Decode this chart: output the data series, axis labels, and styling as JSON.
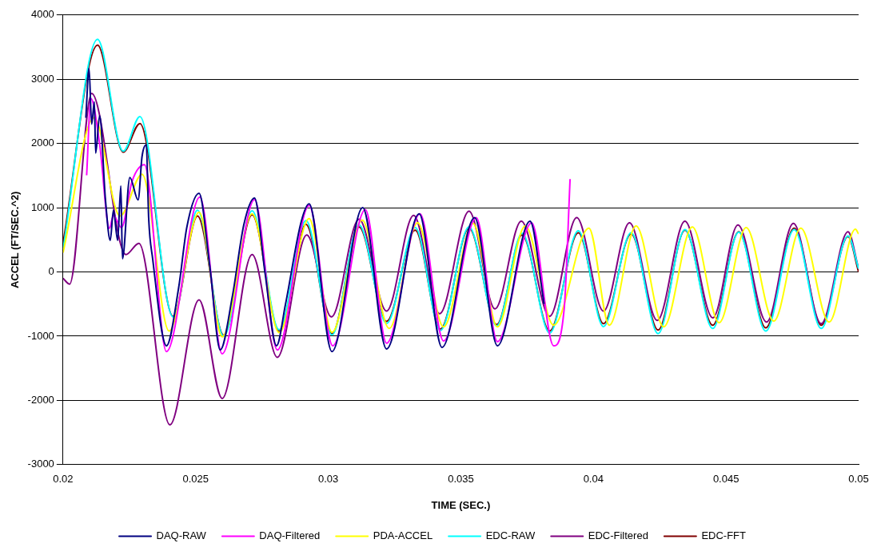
{
  "chart_data": {
    "type": "line",
    "xlabel": "TIME (SEC.)",
    "ylabel": "ACCEL (FT/SEC.^2)",
    "xlim": [
      0.02,
      0.05
    ],
    "xticks": [
      0.02,
      0.025,
      0.03,
      0.035,
      0.04,
      0.045,
      0.05
    ],
    "ylim": [
      -3000,
      4000
    ],
    "yticks": [
      -3000,
      -2000,
      -1000,
      0,
      1000,
      2000,
      3000,
      4000
    ],
    "grid": "y",
    "legend": "bottom",
    "marker": "none",
    "line_style": "solid",
    "series": [
      {
        "name": "DAQ-RAW",
        "color": "#000080",
        "x": [
          0.02086,
          0.02098,
          0.02108,
          0.02118,
          0.02123,
          0.02138,
          0.0216,
          0.02178,
          0.0219,
          0.02206,
          0.02218,
          0.02224,
          0.02252,
          0.02283,
          0.02298,
          0.02314,
          0.02323,
          0.02338,
          0.0239,
          0.02436,
          0.02467,
          0.02513,
          0.02553,
          0.02593,
          0.02639,
          0.02682,
          0.02722,
          0.02762,
          0.02805,
          0.02839,
          0.02898,
          0.02928,
          0.03014,
          0.0313,
          0.0322,
          0.03343,
          0.03429,
          0.03552,
          0.03638,
          0.03761,
          0.03814
        ],
        "values": [
          2400,
          3170,
          2300,
          2650,
          1850,
          2430,
          1120,
          490,
          960,
          490,
          1340,
          205,
          1470,
          1120,
          1800,
          1980,
          830,
          205,
          -1150,
          -245,
          700,
          1225,
          100,
          -1215,
          -370,
          740,
          1150,
          -25,
          -1150,
          -500,
          780,
          1060,
          -1240,
          1000,
          -1200,
          905,
          -1175,
          845,
          -1150,
          790,
          -500
        ]
      },
      {
        "name": "DAQ-Filtered",
        "color": "#ff00ff",
        "x": [
          0.02089,
          0.02105,
          0.02138,
          0.02175,
          0.0219,
          0.0222,
          0.02261,
          0.02307,
          0.0239,
          0.02516,
          0.026,
          0.02722,
          0.02808,
          0.02928,
          0.03017,
          0.0314,
          0.0322,
          0.03346,
          0.03435,
          0.03558,
          0.03638,
          0.03767,
          0.0385,
          0.0389,
          0.03912
        ],
        "values": [
          1505,
          2700,
          1990,
          680,
          880,
          690,
          1420,
          1670,
          -1240,
          1165,
          -1275,
          1125,
          -1215,
          1035,
          -1150,
          970,
          -1110,
          905,
          -1075,
          845,
          -1085,
          765,
          -1150,
          -560,
          1445
        ]
      },
      {
        "name": "PDA-ACCEL",
        "color": "#ffff00",
        "x": [
          0.02,
          0.02117,
          0.02215,
          0.02298,
          0.024,
          0.02513,
          0.026,
          0.02713,
          0.02815,
          0.02928,
          0.03014,
          0.03128,
          0.0323,
          0.03337,
          0.03435,
          0.03546,
          0.03638,
          0.03743,
          0.0385,
          0.03983,
          0.0406,
          0.04161,
          0.04265,
          0.04373,
          0.04474,
          0.04576,
          0.0468,
          0.04782,
          0.04889,
          0.04988,
          0.05
        ],
        "values": [
          300,
          2400,
          870,
          1520,
          -920,
          930,
          -1010,
          905,
          -945,
          830,
          -940,
          805,
          -880,
          765,
          -855,
          755,
          -855,
          715,
          -830,
          680,
          -830,
          715,
          -855,
          700,
          -790,
          690,
          -765,
          680,
          -780,
          665,
          590
        ]
      },
      {
        "name": "EDC-RAW",
        "color": "#00ffff",
        "x": [
          0.02,
          0.0213,
          0.02227,
          0.0229,
          0.02415,
          0.02507,
          0.02606,
          0.02713,
          0.02815,
          0.02916,
          0.03014,
          0.03116,
          0.0322,
          0.03328,
          0.03423,
          0.03531,
          0.03635,
          0.03731,
          0.03835,
          0.03943,
          0.04038,
          0.04142,
          0.04244,
          0.04345,
          0.0445,
          0.04548,
          0.0465,
          0.04757,
          0.04859,
          0.0496,
          0.05
        ],
        "values": [
          350,
          3620,
          1880,
          2420,
          -700,
          960,
          -1000,
          950,
          -900,
          800,
          -980,
          730,
          -800,
          690,
          -910,
          700,
          -840,
          600,
          -950,
          640,
          -850,
          610,
          -960,
          660,
          -880,
          620,
          -920,
          660,
          -880,
          560,
          50
        ]
      },
      {
        "name": "EDC-Filtered",
        "color": "#800080",
        "x": [
          0.02,
          0.02025,
          0.02108,
          0.02237,
          0.02286,
          0.02403,
          0.02513,
          0.026,
          0.02713,
          0.02808,
          0.02919,
          0.03012,
          0.03116,
          0.0322,
          0.03322,
          0.0342,
          0.03531,
          0.03629,
          0.03728,
          0.03835,
          0.03937,
          0.04038,
          0.04136,
          0.04241,
          0.04345,
          0.0445,
          0.04545,
          0.04653,
          0.04754,
          0.04859,
          0.0496,
          0.05
        ],
        "values": [
          -100,
          -190,
          2780,
          270,
          445,
          -2380,
          -435,
          -1970,
          270,
          -1330,
          575,
          -700,
          820,
          -610,
          880,
          -650,
          945,
          -575,
          790,
          -690,
          845,
          -610,
          765,
          -755,
          790,
          -715,
          730,
          -780,
          755,
          -805,
          625,
          50
        ]
      },
      {
        "name": "EDC-FFT",
        "color": "#800000",
        "x": [
          0.02,
          0.0213,
          0.02227,
          0.0229,
          0.02415,
          0.02507,
          0.02606,
          0.02713,
          0.02815,
          0.02916,
          0.03014,
          0.03116,
          0.0322,
          0.03328,
          0.03423,
          0.03531,
          0.03635,
          0.03731,
          0.03835,
          0.03943,
          0.04038,
          0.04142,
          0.04244,
          0.04345,
          0.0445,
          0.04548,
          0.0465,
          0.04757,
          0.04859,
          0.0496,
          0.05
        ],
        "values": [
          450,
          3530,
          1865,
          2310,
          -690,
          870,
          -985,
          890,
          -920,
          740,
          -960,
          700,
          -770,
          650,
          -890,
          680,
          -820,
          575,
          -920,
          610,
          -805,
          590,
          -905,
          650,
          -830,
          625,
          -870,
          680,
          -830,
          550,
          0
        ]
      }
    ]
  }
}
